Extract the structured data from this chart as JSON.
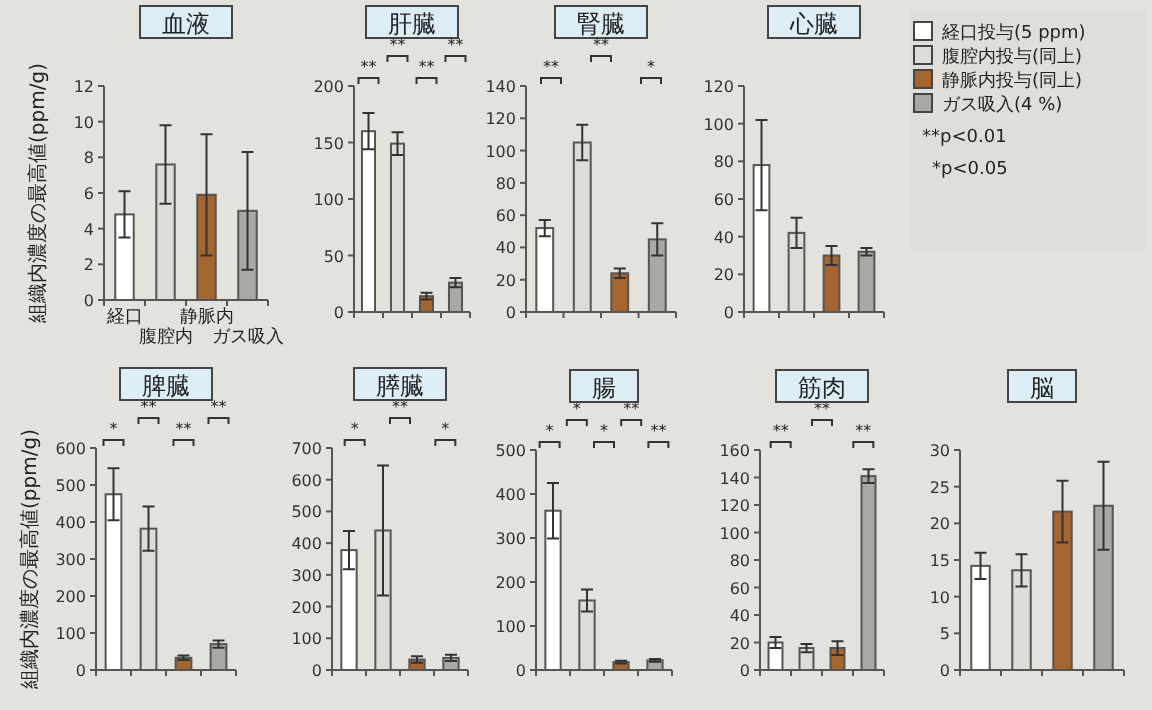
{
  "chart_data": [
    {
      "type": "bar",
      "title": "血液",
      "ylabel": "組織内濃度の最高値(ppm/g)",
      "categories": [
        "経口",
        "腹腔内",
        "静脈内",
        "ガス吸入"
      ],
      "values": [
        4.8,
        7.6,
        5.9,
        5.0
      ],
      "errors": [
        1.3,
        2.2,
        3.4,
        3.3
      ],
      "colors": [
        "#ffffff",
        "#dcdcd8",
        "#a5652f",
        "#a8a8a4"
      ],
      "ylim": [
        0,
        12
      ],
      "yticks": [
        0,
        2,
        4,
        6,
        8,
        10,
        12
      ]
    },
    {
      "type": "bar",
      "title": "肝臓",
      "categories": [
        null,
        null,
        null,
        null
      ],
      "values": [
        160,
        149,
        14,
        26
      ],
      "errors": [
        16,
        10,
        3,
        4
      ],
      "colors": [
        "#ffffff",
        "#dcdcd8",
        "#a5652f",
        "#a8a8a4"
      ],
      "ylim": [
        0,
        200
      ],
      "yticks": [
        0,
        50,
        100,
        150,
        200
      ],
      "annotations": [
        "**",
        "**",
        "**",
        "**"
      ]
    },
    {
      "type": "bar",
      "title": "腎臓",
      "categories": [
        null,
        null,
        null,
        null
      ],
      "values": [
        52,
        105,
        24,
        45
      ],
      "errors": [
        5,
        11,
        3,
        10
      ],
      "colors": [
        "#ffffff",
        "#dcdcd8",
        "#a5652f",
        "#a8a8a4"
      ],
      "ylim": [
        0,
        140
      ],
      "yticks": [
        0,
        20,
        40,
        60,
        80,
        100,
        120,
        140
      ],
      "annotations": [
        "**",
        "**",
        "*"
      ]
    },
    {
      "type": "bar",
      "title": "心臓",
      "categories": [
        null,
        null,
        null,
        null
      ],
      "values": [
        78,
        42,
        30,
        32
      ],
      "errors": [
        24,
        8,
        5,
        2
      ],
      "colors": [
        "#ffffff",
        "#dcdcd8",
        "#a5652f",
        "#a8a8a4"
      ],
      "ylim": [
        0,
        120
      ],
      "yticks": [
        0,
        20,
        40,
        60,
        80,
        100,
        120
      ]
    },
    {
      "type": "other",
      "categories": [
        "経口投与(5 ppm)",
        "腹腔内投与(同上)",
        "静脈内投与(同上)",
        "ガス吸入(4 %)"
      ],
      "colors": [
        "#ffffff",
        "#dcdcd8",
        "#a5652f",
        "#a8a8a4"
      ],
      "annotations": [
        "**p<0.01",
        "*p<0.05"
      ]
    },
    {
      "type": "bar",
      "title": "脾臓",
      "ylabel": "組織内濃度の最高値(ppm/g)",
      "categories": [
        null,
        null,
        null,
        null
      ],
      "values": [
        475,
        382,
        33,
        70
      ],
      "errors": [
        70,
        60,
        6,
        10
      ],
      "colors": [
        "#ffffff",
        "#dcdcd8",
        "#a5652f",
        "#a8a8a4"
      ],
      "ylim": [
        0,
        600
      ],
      "yticks": [
        0,
        100,
        200,
        300,
        400,
        500,
        600
      ],
      "annotations": [
        "*",
        "**",
        "**",
        "**"
      ]
    },
    {
      "type": "bar",
      "title": "膵臓",
      "categories": [
        null,
        null,
        null,
        null
      ],
      "values": [
        378,
        440,
        33,
        38
      ],
      "errors": [
        60,
        205,
        10,
        10
      ],
      "colors": [
        "#ffffff",
        "#dcdcd8",
        "#a5652f",
        "#a8a8a4"
      ],
      "ylim": [
        0,
        700
      ],
      "yticks": [
        0,
        100,
        200,
        300,
        400,
        500,
        600,
        700
      ],
      "annotations": [
        "*",
        "**",
        "*"
      ]
    },
    {
      "type": "bar",
      "title": "腸",
      "categories": [
        null,
        null,
        null,
        null
      ],
      "values": [
        362,
        158,
        18,
        22
      ],
      "errors": [
        63,
        25,
        3,
        3
      ],
      "colors": [
        "#ffffff",
        "#dcdcd8",
        "#a5652f",
        "#a8a8a4"
      ],
      "ylim": [
        0,
        500
      ],
      "yticks": [
        0,
        100,
        200,
        300,
        400,
        500
      ],
      "annotations": [
        "*",
        "*",
        "*",
        "**",
        "**"
      ]
    },
    {
      "type": "bar",
      "title": "筋肉",
      "categories": [
        null,
        null,
        null,
        null
      ],
      "values": [
        20,
        16,
        16,
        141
      ],
      "errors": [
        4,
        3,
        5,
        5
      ],
      "colors": [
        "#ffffff",
        "#dcdcd8",
        "#a5652f",
        "#a8a8a4"
      ],
      "ylim": [
        0,
        160
      ],
      "yticks": [
        0,
        20,
        40,
        60,
        80,
        100,
        120,
        140,
        160
      ],
      "annotations": [
        "**",
        "**",
        "**"
      ]
    },
    {
      "type": "bar",
      "title": "脳",
      "categories": [
        null,
        null,
        null,
        null
      ],
      "values": [
        14.2,
        13.6,
        21.6,
        22.4
      ],
      "errors": [
        1.8,
        2.2,
        4.2,
        6
      ],
      "colors": [
        "#ffffff",
        "#dcdcd8",
        "#a5652f",
        "#a8a8a4"
      ],
      "ylim": [
        0,
        30
      ],
      "yticks": [
        0,
        5,
        10,
        15,
        20,
        25,
        30
      ]
    }
  ]
}
